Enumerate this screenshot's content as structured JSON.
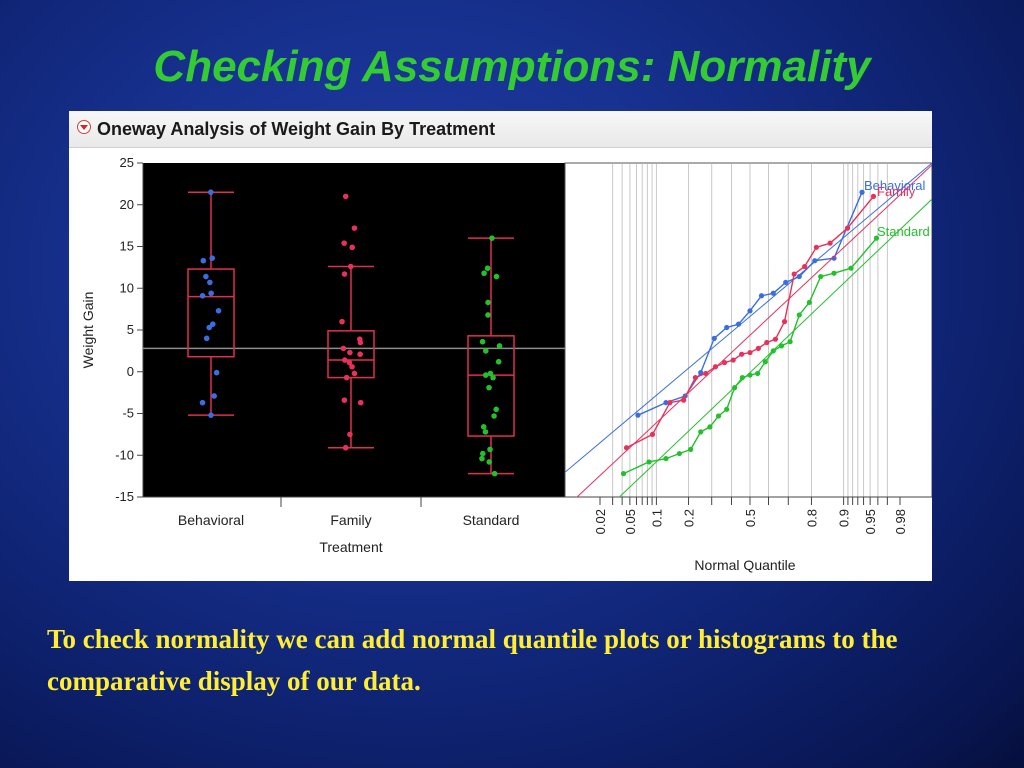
{
  "slide": {
    "title": "Checking Assumptions: Normality",
    "caption": "To check normality we can add normal quantile plots or histograms to the comparative display of our data."
  },
  "panel": {
    "title": "Oneway Analysis of Weight Gain By Treatment",
    "disclosure_icon": "red-triangle-down-icon"
  },
  "colors": {
    "Behavioral": "#3a6ee0",
    "Family": "#e8305a",
    "Standard": "#22c02a",
    "box": "#e03050",
    "background_plot": "#000000"
  },
  "chart_data": [
    {
      "type": "box",
      "xlabel": "Treatment",
      "ylabel": "Weight Gain",
      "ylim": [
        -15,
        25
      ],
      "yticks": [
        25,
        20,
        15,
        10,
        5,
        0,
        -5,
        -10,
        -15
      ],
      "grand_mean": 2.8,
      "categories": [
        "Behavioral",
        "Family",
        "Standard"
      ],
      "series": [
        {
          "name": "Behavioral",
          "whisker_low": -5.2,
          "q1": 1.8,
          "median": 9.0,
          "q3": 12.3,
          "whisker_high": 21.5,
          "points": [
            21.5,
            13.6,
            13.3,
            11.4,
            10.7,
            9.4,
            9.1,
            7.3,
            5.7,
            5.3,
            4.0,
            -0.1,
            -2.9,
            -3.7,
            -5.2
          ]
        },
        {
          "name": "Family",
          "whisker_low": -9.1,
          "q1": -0.7,
          "median": 1.4,
          "q3": 4.9,
          "whisker_high": 12.6,
          "points": [
            21.0,
            17.2,
            15.4,
            14.9,
            12.6,
            11.7,
            6.0,
            3.9,
            3.5,
            2.8,
            2.3,
            2.1,
            1.4,
            1.1,
            0.6,
            -0.2,
            -0.7,
            -3.4,
            -3.7,
            -7.5,
            -9.1
          ]
        },
        {
          "name": "Standard",
          "whisker_low": -12.2,
          "q1": -7.7,
          "median": -0.4,
          "q3": 4.3,
          "whisker_high": 16.0,
          "points": [
            16.0,
            12.4,
            11.8,
            11.4,
            8.3,
            6.8,
            3.6,
            3.1,
            2.5,
            1.2,
            -0.2,
            -0.4,
            -0.7,
            -1.9,
            -4.5,
            -5.3,
            -6.6,
            -7.2,
            -9.3,
            -9.8,
            -10.4,
            -10.8,
            -12.2
          ]
        }
      ]
    },
    {
      "type": "line",
      "xlabel": "Normal Quantile",
      "xticks": [
        "0.02",
        "0.05",
        "0.1",
        "0.2",
        "0.5",
        "0.8",
        "0.9",
        "0.95",
        "0.98"
      ],
      "xtick_probs": [
        0.02,
        0.05,
        0.1,
        0.2,
        0.5,
        0.8,
        0.9,
        0.95,
        0.98
      ],
      "grid_probs": [
        0.03,
        0.04,
        0.05,
        0.06,
        0.07,
        0.08,
        0.09,
        0.1,
        0.2,
        0.3,
        0.4,
        0.5,
        0.6,
        0.7,
        0.8,
        0.9,
        0.91,
        0.92,
        0.93,
        0.94,
        0.95,
        0.96,
        0.97
      ],
      "legend_labels": [
        {
          "series": "Behavioral",
          "text": "Behavioral"
        },
        {
          "series": "Family",
          "text": "Family"
        },
        {
          "series": "Standard",
          "text": "Standard"
        }
      ]
    }
  ]
}
